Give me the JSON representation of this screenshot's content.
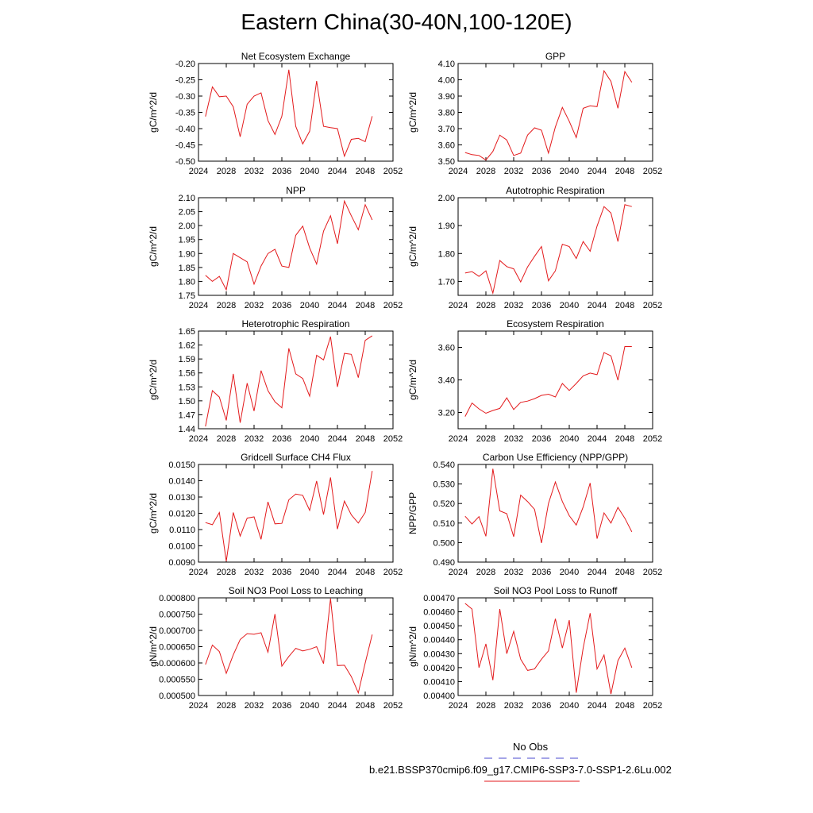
{
  "title": "Eastern China(30-40N,100-120E)",
  "legend": {
    "entries": [
      {
        "label": "No Obs",
        "color": "#4b4bcf",
        "dash": "dashed"
      },
      {
        "label": "b.e21.BSSP370cmip6.f09_g17.CMIP6-SSP3-7.0-SSP1-2.6Lu.002",
        "color": "#e31a1c",
        "dash": "solid"
      }
    ]
  },
  "chart_data": [
    {
      "type": "line",
      "title": "Net Ecosystem Exchange",
      "ylabel": "gC/m^2/d",
      "xlim": [
        2024,
        2052
      ],
      "xticks": [
        2024,
        2028,
        2032,
        2036,
        2040,
        2044,
        2048,
        2052
      ],
      "ylim": [
        -0.5,
        -0.2
      ],
      "yticks": [
        "-0.20",
        "-0.25",
        "-0.30",
        "-0.35",
        "-0.40",
        "-0.45",
        "-0.50"
      ],
      "series": [
        {
          "color": "#e31a1c",
          "x": [
            2025,
            2026,
            2027,
            2028,
            2029,
            2030,
            2031,
            2032,
            2033,
            2034,
            2035,
            2036,
            2037,
            2038,
            2039,
            2040,
            2041,
            2042,
            2043,
            2044,
            2045,
            2046,
            2047,
            2048,
            2049
          ],
          "values": [
            -0.363,
            -0.272,
            -0.302,
            -0.3,
            -0.333,
            -0.425,
            -0.325,
            -0.3,
            -0.29,
            -0.375,
            -0.418,
            -0.362,
            -0.219,
            -0.393,
            -0.447,
            -0.408,
            -0.254,
            -0.393,
            -0.397,
            -0.4,
            -0.485,
            -0.433,
            -0.43,
            -0.44,
            -0.362
          ]
        }
      ]
    },
    {
      "type": "line",
      "title": "GPP",
      "ylabel": "gC/m^2/d",
      "xlim": [
        2024,
        2052
      ],
      "xticks": [
        2024,
        2028,
        2032,
        2036,
        2040,
        2044,
        2048,
        2052
      ],
      "ylim": [
        3.5,
        4.1
      ],
      "yticks": [
        "4.10",
        "4.00",
        "3.90",
        "3.80",
        "3.70",
        "3.60",
        "3.50"
      ],
      "series": [
        {
          "color": "#e31a1c",
          "x": [
            2025,
            2026,
            2027,
            2028,
            2029,
            2030,
            2031,
            2032,
            2033,
            2034,
            2035,
            2036,
            2037,
            2038,
            2039,
            2040,
            2041,
            2042,
            2043,
            2044,
            2045,
            2046,
            2047,
            2048,
            2049
          ],
          "values": [
            3.553,
            3.54,
            3.535,
            3.507,
            3.56,
            3.66,
            3.63,
            3.535,
            3.55,
            3.66,
            3.705,
            3.69,
            3.55,
            3.71,
            3.83,
            3.745,
            3.645,
            3.825,
            3.84,
            3.835,
            4.055,
            3.99,
            3.825,
            4.05,
            3.985
          ]
        }
      ]
    },
    {
      "type": "line",
      "title": "NPP",
      "ylabel": "gC/m^2/d",
      "xlim": [
        2024,
        2052
      ],
      "xticks": [
        2024,
        2028,
        2032,
        2036,
        2040,
        2044,
        2048,
        2052
      ],
      "ylim": [
        1.75,
        2.1
      ],
      "yticks": [
        "2.10",
        "2.05",
        "2.00",
        "1.95",
        "1.90",
        "1.85",
        "1.80",
        "1.75"
      ],
      "series": [
        {
          "color": "#e31a1c",
          "x": [
            2025,
            2026,
            2027,
            2028,
            2029,
            2030,
            2031,
            2032,
            2033,
            2034,
            2035,
            2036,
            2037,
            2038,
            2039,
            2040,
            2041,
            2042,
            2043,
            2044,
            2045,
            2046,
            2047,
            2048,
            2049
          ],
          "values": [
            1.822,
            1.8,
            1.818,
            1.77,
            1.9,
            1.885,
            1.87,
            1.79,
            1.855,
            1.9,
            1.915,
            1.855,
            1.85,
            1.965,
            1.998,
            1.92,
            1.862,
            1.98,
            2.035,
            1.935,
            2.088,
            2.035,
            1.985,
            2.075,
            2.02
          ]
        }
      ]
    },
    {
      "type": "line",
      "title": "Autotrophic Respiration",
      "ylabel": "gC/m^2/d",
      "xlim": [
        2024,
        2052
      ],
      "xticks": [
        2024,
        2028,
        2032,
        2036,
        2040,
        2044,
        2048,
        2052
      ],
      "ylim": [
        1.65,
        2.0
      ],
      "yticks": [
        "2.00",
        "1.90",
        "1.80",
        "1.70"
      ],
      "series": [
        {
          "color": "#e31a1c",
          "x": [
            2025,
            2026,
            2027,
            2028,
            2029,
            2030,
            2031,
            2032,
            2033,
            2034,
            2035,
            2036,
            2037,
            2038,
            2039,
            2040,
            2041,
            2042,
            2043,
            2044,
            2045,
            2046,
            2047,
            2048,
            2049
          ],
          "values": [
            1.73,
            1.735,
            1.718,
            1.738,
            1.658,
            1.775,
            1.753,
            1.745,
            1.698,
            1.752,
            1.79,
            1.825,
            1.702,
            1.738,
            1.833,
            1.825,
            1.782,
            1.843,
            1.808,
            1.898,
            1.968,
            1.945,
            1.843,
            1.975,
            1.968
          ]
        }
      ]
    },
    {
      "type": "line",
      "title": "Heterotrophic Respiration",
      "ylabel": "gC/m^2/d",
      "xlim": [
        2024,
        2052
      ],
      "xticks": [
        2024,
        2028,
        2032,
        2036,
        2040,
        2044,
        2048,
        2052
      ],
      "ylim": [
        1.44,
        1.65
      ],
      "yticks": [
        "1.65",
        "1.62",
        "1.59",
        "1.56",
        "1.53",
        "1.50",
        "1.47",
        "1.44"
      ],
      "series": [
        {
          "color": "#e31a1c",
          "x": [
            2025,
            2026,
            2027,
            2028,
            2029,
            2030,
            2031,
            2032,
            2033,
            2034,
            2035,
            2036,
            2037,
            2038,
            2039,
            2040,
            2041,
            2042,
            2043,
            2044,
            2045,
            2046,
            2047,
            2048,
            2049
          ],
          "values": [
            1.445,
            1.522,
            1.508,
            1.458,
            1.558,
            1.453,
            1.538,
            1.478,
            1.565,
            1.522,
            1.498,
            1.485,
            1.613,
            1.558,
            1.548,
            1.51,
            1.598,
            1.588,
            1.638,
            1.53,
            1.602,
            1.6,
            1.55,
            1.63,
            1.64
          ]
        }
      ]
    },
    {
      "type": "line",
      "title": "Ecosystem Respiration",
      "ylabel": "gC/m^2/d",
      "xlim": [
        2024,
        2052
      ],
      "xticks": [
        2024,
        2028,
        2032,
        2036,
        2040,
        2044,
        2048,
        2052
      ],
      "ylim": [
        3.1,
        3.7
      ],
      "yticks": [
        "3.60",
        "3.40",
        "3.20"
      ],
      "series": [
        {
          "color": "#e31a1c",
          "x": [
            2025,
            2026,
            2027,
            2028,
            2029,
            2030,
            2031,
            2032,
            2033,
            2034,
            2035,
            2036,
            2037,
            2038,
            2039,
            2040,
            2041,
            2042,
            2043,
            2044,
            2045,
            2046,
            2047,
            2048,
            2049
          ],
          "values": [
            3.175,
            3.258,
            3.222,
            3.195,
            3.212,
            3.225,
            3.29,
            3.218,
            3.262,
            3.27,
            3.285,
            3.305,
            3.312,
            3.295,
            3.378,
            3.335,
            3.378,
            3.425,
            3.442,
            3.432,
            3.568,
            3.548,
            3.398,
            3.605,
            3.605
          ]
        }
      ]
    },
    {
      "type": "line",
      "title": "Gridcell Surface CH4 Flux",
      "ylabel": "gC/m^2/d",
      "xlim": [
        2024,
        2052
      ],
      "xticks": [
        2024,
        2028,
        2032,
        2036,
        2040,
        2044,
        2048,
        2052
      ],
      "ylim": [
        0.009,
        0.015
      ],
      "yticks": [
        "0.0150",
        "0.0140",
        "0.0130",
        "0.0120",
        "0.0110",
        "0.0100",
        "0.0090"
      ],
      "series": [
        {
          "color": "#e31a1c",
          "x": [
            2025,
            2026,
            2027,
            2028,
            2029,
            2030,
            2031,
            2032,
            2033,
            2034,
            2035,
            2036,
            2037,
            2038,
            2039,
            2040,
            2041,
            2042,
            2043,
            2044,
            2045,
            2046,
            2047,
            2048,
            2049
          ],
          "values": [
            0.01143,
            0.0113,
            0.01205,
            0.00905,
            0.01205,
            0.0106,
            0.0117,
            0.01178,
            0.0104,
            0.0127,
            0.01135,
            0.01138,
            0.01283,
            0.01318,
            0.0131,
            0.01218,
            0.01398,
            0.01192,
            0.0142,
            0.01103,
            0.01275,
            0.0119,
            0.0114,
            0.01205,
            0.0146
          ]
        }
      ]
    },
    {
      "type": "line",
      "title": "Carbon Use Efficiency (NPP/GPP)",
      "ylabel": "NPP/GPP",
      "xlim": [
        2024,
        2052
      ],
      "xticks": [
        2024,
        2028,
        2032,
        2036,
        2040,
        2044,
        2048,
        2052
      ],
      "ylim": [
        0.49,
        0.54
      ],
      "yticks": [
        "0.540",
        "0.530",
        "0.520",
        "0.510",
        "0.500",
        "0.490"
      ],
      "series": [
        {
          "color": "#e31a1c",
          "x": [
            2025,
            2026,
            2027,
            2028,
            2029,
            2030,
            2031,
            2032,
            2033,
            2034,
            2035,
            2036,
            2037,
            2038,
            2039,
            2040,
            2041,
            2042,
            2043,
            2044,
            2045,
            2046,
            2047,
            2048,
            2049
          ],
          "values": [
            0.5135,
            0.5095,
            0.5133,
            0.5032,
            0.5378,
            0.5162,
            0.5148,
            0.503,
            0.5243,
            0.521,
            0.517,
            0.4998,
            0.52,
            0.531,
            0.521,
            0.5138,
            0.509,
            0.5182,
            0.5305,
            0.502,
            0.5152,
            0.51,
            0.518,
            0.5125,
            0.5055
          ]
        }
      ]
    },
    {
      "type": "line",
      "title": "Soil NO3 Pool Loss to Leaching",
      "ylabel": "gN/m^2/d",
      "xlim": [
        2024,
        2052
      ],
      "xticks": [
        2024,
        2028,
        2032,
        2036,
        2040,
        2044,
        2048,
        2052
      ],
      "ylim": [
        0.0005,
        0.0008
      ],
      "yticks": [
        "0.000800",
        "0.000750",
        "0.000700",
        "0.000650",
        "0.000600",
        "0.000550",
        "0.000500"
      ],
      "series": [
        {
          "color": "#e31a1c",
          "x": [
            2025,
            2026,
            2027,
            2028,
            2029,
            2030,
            2031,
            2032,
            2033,
            2034,
            2035,
            2036,
            2037,
            2038,
            2039,
            2040,
            2041,
            2042,
            2043,
            2044,
            2045,
            2046,
            2047,
            2048,
            2049
          ],
          "values": [
            0.000595,
            0.000655,
            0.000635,
            0.000568,
            0.000625,
            0.000672,
            0.00069,
            0.000688,
            0.000693,
            0.000633,
            0.00075,
            0.00059,
            0.00062,
            0.000645,
            0.000637,
            0.000642,
            0.00065,
            0.000598,
            0.000798,
            0.000592,
            0.000593,
            0.000558,
            0.000508,
            0.0006,
            0.000687
          ]
        }
      ]
    },
    {
      "type": "line",
      "title": "Soil NO3 Pool Loss to Runoff",
      "ylabel": "gN/m^2/d",
      "xlim": [
        2024,
        2052
      ],
      "xticks": [
        2024,
        2028,
        2032,
        2036,
        2040,
        2044,
        2048,
        2052
      ],
      "ylim": [
        0.004,
        0.0047
      ],
      "yticks": [
        "0.00470",
        "0.00460",
        "0.00450",
        "0.00440",
        "0.00430",
        "0.00420",
        "0.00410",
        "0.00400"
      ],
      "series": [
        {
          "color": "#e31a1c",
          "x": [
            2025,
            2026,
            2027,
            2028,
            2029,
            2030,
            2031,
            2032,
            2033,
            2034,
            2035,
            2036,
            2037,
            2038,
            2039,
            2040,
            2041,
            2042,
            2043,
            2044,
            2045,
            2046,
            2047,
            2048,
            2049
          ],
          "values": [
            0.00466,
            0.00462,
            0.0042,
            0.00437,
            0.00411,
            0.00462,
            0.0043,
            0.00446,
            0.00426,
            0.00418,
            0.00419,
            0.00426,
            0.00432,
            0.00455,
            0.00434,
            0.00454,
            0.00402,
            0.00434,
            0.00459,
            0.00419,
            0.00429,
            0.00401,
            0.00425,
            0.00434,
            0.0042
          ]
        }
      ]
    }
  ]
}
